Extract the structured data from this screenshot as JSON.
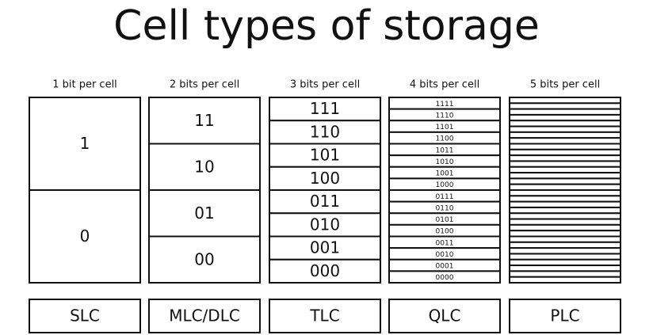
{
  "title": "Cell types of storage",
  "columns": [
    {
      "header": "1 bit per cell",
      "cells": [
        "1",
        "0"
      ],
      "label": "SLC"
    },
    {
      "header": "2 bits per cell",
      "cells": [
        "11",
        "10",
        "01",
        "00"
      ],
      "label": "MLC/DLC"
    },
    {
      "header": "3 bits per cell",
      "cells": [
        "111",
        "110",
        "101",
        "100",
        "011",
        "010",
        "001",
        "000"
      ],
      "label": "TLC"
    },
    {
      "header": "4 bits per cell",
      "cells": [
        "1111",
        "1110",
        "1101",
        "1100",
        "1011",
        "1010",
        "1001",
        "1000",
        "0111",
        "0110",
        "0101",
        "0100",
        "0011",
        "0010",
        "0001",
        "0000"
      ],
      "label": "QLC"
    },
    {
      "header": "5 bits per cell",
      "cells": [],
      "label": "PLC"
    }
  ]
}
